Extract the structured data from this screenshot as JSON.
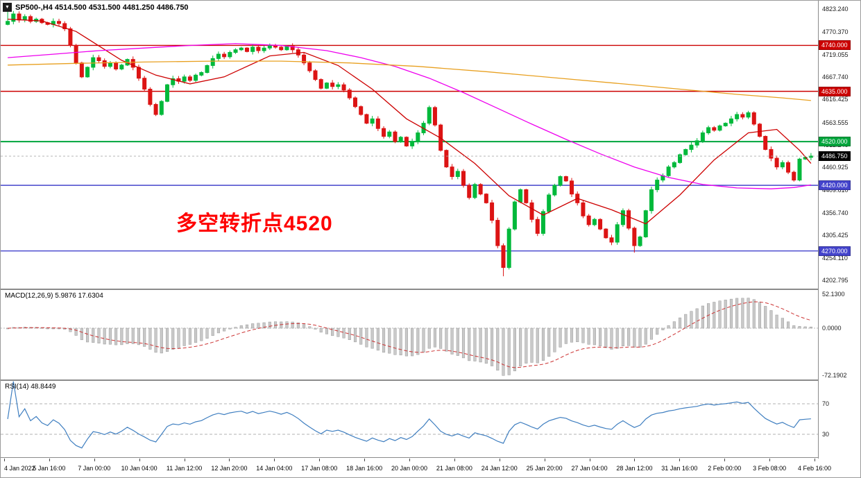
{
  "window": {
    "collapse_icon": "▼",
    "title": "SP500-,H4 4514.500 4531.500 4481.250 4486.750"
  },
  "time_axis": {
    "labels": [
      "4 Jan 2022",
      "5 Jan 16:00",
      "7 Jan 00:00",
      "10 Jan 04:00",
      "11 Jan 12:00",
      "12 Jan 20:00",
      "14 Jan 04:00",
      "17 Jan 08:00",
      "18 Jan 16:00",
      "20 Jan 00:00",
      "21 Jan 08:00",
      "24 Jan 12:00",
      "25 Jan 20:00",
      "27 Jan 04:00",
      "28 Jan 12:00",
      "31 Jan 16:00",
      "2 Feb 00:00",
      "3 Feb 08:00",
      "4 Feb 16:00"
    ]
  },
  "chart_data": [
    {
      "type": "candlestick",
      "symbol": "SP500-",
      "timeframe": "H4",
      "ohlc_display": {
        "open": "4514.500",
        "high": "4531.500",
        "low": "4481.250",
        "close": "4486.750"
      },
      "ylim": [
        4202.795,
        4823.24
      ],
      "y_ticks": [
        "4823.240",
        "4770.370",
        "4719.055",
        "4667.740",
        "4616.425",
        "4563.555",
        "4512.240",
        "4460.925",
        "4409.610",
        "4356.740",
        "4305.425",
        "4254.110",
        "4202.795"
      ],
      "up_color": "#00B93B",
      "down_color": "#DC1414",
      "first_open": 4788,
      "closes": [
        4795,
        4812,
        4798,
        4806,
        4795,
        4800,
        4792,
        4788,
        4795,
        4790,
        4778,
        4740,
        4700,
        4668,
        4690,
        4712,
        4705,
        4692,
        4700,
        4686,
        4695,
        4708,
        4690,
        4665,
        4640,
        4605,
        4582,
        4612,
        4650,
        4664,
        4658,
        4668,
        4660,
        4672,
        4678,
        4694,
        4710,
        4720,
        4714,
        4724,
        4730,
        4734,
        4726,
        4736,
        4728,
        4734,
        4740,
        4736,
        4730,
        4738,
        4730,
        4718,
        4700,
        4682,
        4662,
        4642,
        4654,
        4646,
        4650,
        4638,
        4620,
        4600,
        4582,
        4562,
        4572,
        4550,
        4532,
        4542,
        4520,
        4530,
        4510,
        4520,
        4540,
        4562,
        4598,
        4558,
        4500,
        4462,
        4440,
        4452,
        4420,
        4392,
        4422,
        4400,
        4380,
        4340,
        4282,
        4232,
        4320,
        4382,
        4410,
        4380,
        4342,
        4310,
        4360,
        4398,
        4420,
        4440,
        4430,
        4400,
        4380,
        4350,
        4330,
        4342,
        4320,
        4300,
        4290,
        4330,
        4362,
        4322,
        4282,
        4302,
        4362,
        4410,
        4432,
        4442,
        4462,
        4472,
        4490,
        4502,
        4512,
        4522,
        4540,
        4552,
        4546,
        4556,
        4562,
        4572,
        4582,
        4576,
        4586,
        4560,
        4532,
        4502,
        4482,
        4462,
        4472,
        4450,
        4432,
        4480,
        4484,
        4487
      ],
      "special_highs": {
        "0": 4823.2
      },
      "special_lows": {
        "87": 4212.0,
        "110": 4266.0
      },
      "horizontal_lines": [
        {
          "price": 4740.0,
          "label": "4740.000",
          "color": "#CC0000"
        },
        {
          "price": 4635.0,
          "label": "4635.000",
          "color": "#CC0000"
        },
        {
          "price": 4520.0,
          "label": "4520.000",
          "color": "#00A53C"
        },
        {
          "price": 4420.0,
          "label": "4420.000",
          "color": "#4444CC"
        },
        {
          "price": 4270.0,
          "label": "4270.000",
          "color": "#4444CC"
        }
      ],
      "current_price": {
        "value": 4486.75,
        "label": "4486.750",
        "box_color": "#000000"
      },
      "moving_averages": [
        {
          "name": "ma-fast-red",
          "color": "#CD0000",
          "points": [
            [
              0,
              4800
            ],
            [
              6,
              4796
            ],
            [
              12,
              4772
            ],
            [
              20,
              4706
            ],
            [
              26,
              4672
            ],
            [
              32,
              4652
            ],
            [
              38,
              4668
            ],
            [
              46,
              4716
            ],
            [
              52,
              4724
            ],
            [
              58,
              4694
            ],
            [
              64,
              4640
            ],
            [
              70,
              4572
            ],
            [
              76,
              4528
            ],
            [
              82,
              4470
            ],
            [
              88,
              4396
            ],
            [
              94,
              4352
            ],
            [
              100,
              4390
            ],
            [
              106,
              4364
            ],
            [
              112,
              4332
            ],
            [
              118,
              4398
            ],
            [
              124,
              4478
            ],
            [
              130,
              4540
            ],
            [
              135,
              4548
            ],
            [
              139,
              4500
            ],
            [
              141,
              4470
            ]
          ]
        },
        {
          "name": "ma-mid-magenta",
          "color": "#EE00EE",
          "points": [
            [
              0,
              4712
            ],
            [
              8,
              4720
            ],
            [
              16,
              4728
            ],
            [
              24,
              4734
            ],
            [
              32,
              4740
            ],
            [
              40,
              4744
            ],
            [
              48,
              4740
            ],
            [
              56,
              4728
            ],
            [
              62,
              4712
            ],
            [
              68,
              4692
            ],
            [
              74,
              4665
            ],
            [
              80,
              4632
            ],
            [
              86,
              4596
            ],
            [
              92,
              4560
            ],
            [
              98,
              4525
            ],
            [
              104,
              4492
            ],
            [
              110,
              4462
            ],
            [
              116,
              4438
            ],
            [
              122,
              4422
            ],
            [
              128,
              4414
            ],
            [
              134,
              4412
            ],
            [
              138,
              4415
            ],
            [
              141,
              4421
            ]
          ]
        },
        {
          "name": "ma-slow-orange",
          "color": "#E8A020",
          "points": [
            [
              0,
              4695
            ],
            [
              12,
              4699
            ],
            [
              24,
              4702
            ],
            [
              36,
              4704
            ],
            [
              48,
              4704
            ],
            [
              60,
              4700
            ],
            [
              72,
              4692
            ],
            [
              84,
              4680
            ],
            [
              96,
              4666
            ],
            [
              108,
              4652
            ],
            [
              118,
              4640
            ],
            [
              128,
              4628
            ],
            [
              136,
              4620
            ],
            [
              141,
              4614
            ]
          ]
        }
      ],
      "annotation": {
        "text": "多空转折点4520",
        "color": "#FF0000"
      }
    },
    {
      "type": "bar",
      "name": "MACD",
      "label": "MACD(12,26,9) 5.9876 17.6304",
      "params": [
        12,
        26,
        9
      ],
      "values_display": [
        "5.9876",
        "17.6304"
      ],
      "ylim": [
        -72.1902,
        52.13
      ],
      "y_ticks": [
        "52.1300",
        "0.0000",
        "-72.1902"
      ],
      "histogram_color": "#C9C9C9",
      "histogram_stroke": "#9a9a9a",
      "signal_color": "#CC3333",
      "derived_from": "closes"
    },
    {
      "type": "line",
      "name": "RSI",
      "label": "RSI(14) 48.8449",
      "period": 14,
      "value_display": "48.8449",
      "levels": [
        70,
        30
      ],
      "y_ticks": [
        "70",
        "30"
      ],
      "line_color": "#3E7EC0",
      "derived_from": "closes"
    }
  ]
}
